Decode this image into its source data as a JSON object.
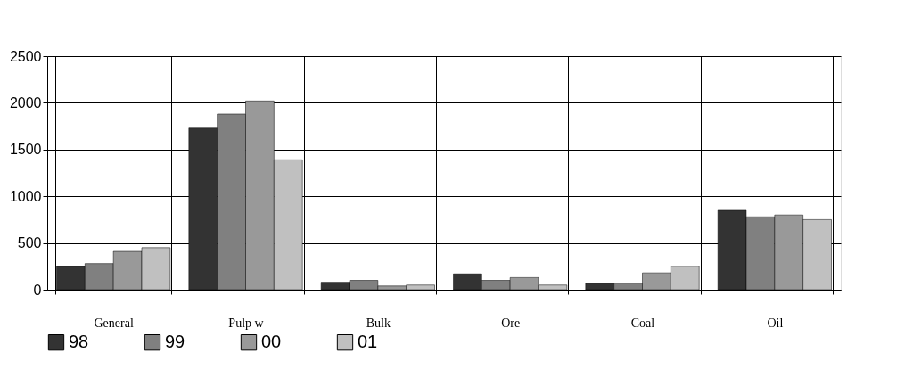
{
  "chart_data": {
    "type": "bar",
    "categories": [
      "General",
      "Pulp w",
      "Bulk",
      "Ore",
      "Coal",
      "Oil"
    ],
    "series": [
      {
        "name": "98",
        "color": "#333333",
        "values": [
          250,
          1730,
          80,
          170,
          70,
          850
        ]
      },
      {
        "name": "99",
        "color": "#808080",
        "values": [
          280,
          1880,
          100,
          100,
          70,
          780
        ]
      },
      {
        "name": "00",
        "color": "#999999",
        "values": [
          410,
          2020,
          40,
          130,
          180,
          800
        ]
      },
      {
        "name": "01",
        "color": "#c0c0c0",
        "values": [
          450,
          1390,
          50,
          50,
          250,
          750
        ]
      }
    ],
    "ylim": [
      0,
      2500
    ],
    "yticks": [
      0,
      500,
      1000,
      1500,
      2000,
      2500
    ],
    "grid": true,
    "legend": "bottom"
  }
}
